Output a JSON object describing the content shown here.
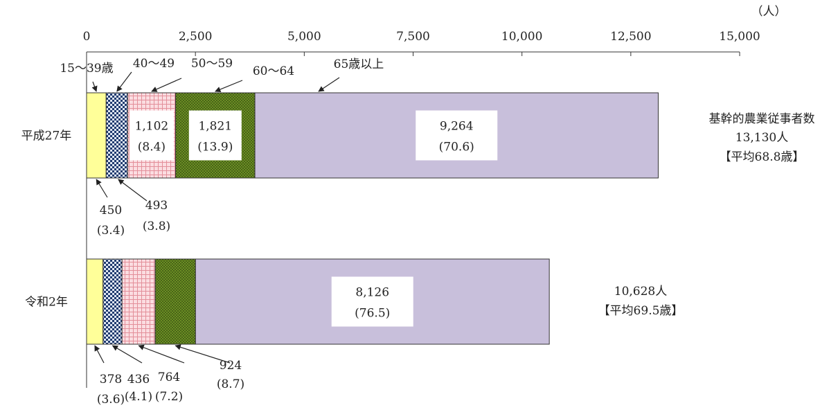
{
  "chart_data": {
    "type": "bar",
    "orientation": "horizontal",
    "stacked": true,
    "unit": "（人）",
    "xlim": [
      0,
      15000
    ],
    "ticks": [
      "0",
      "2,500",
      "5,000",
      "7,500",
      "10,000",
      "12,500",
      "15,000"
    ],
    "tick_values": [
      0,
      2500,
      5000,
      7500,
      10000,
      12500,
      15000
    ],
    "categories": [
      "平成27年",
      "令和2年"
    ],
    "series": [
      {
        "name": "15～39歳",
        "values": [
          450,
          378
        ],
        "share": [
          "(3.4)",
          "(3.6)"
        ],
        "value_labels": [
          "450",
          "378"
        ],
        "color": "#ffff99",
        "pattern": "solid"
      },
      {
        "name": "40～49",
        "values": [
          493,
          436
        ],
        "share": [
          "(3.8)",
          "(4.1)"
        ],
        "value_labels": [
          "493",
          "436"
        ],
        "color": "#1f3a6e",
        "pattern": "check"
      },
      {
        "name": "50～59",
        "values": [
          1102,
          764
        ],
        "share": [
          "(8.4)",
          "(7.2)"
        ],
        "value_labels": [
          "1,102",
          "764"
        ],
        "color": "#f4b8c0",
        "pattern": "grid"
      },
      {
        "name": "60～64",
        "values": [
          1821,
          924
        ],
        "share": [
          "(13.9)",
          "(8.7)"
        ],
        "value_labels": [
          "1,821",
          "924"
        ],
        "color": "#6b8e23",
        "pattern": "dots"
      },
      {
        "name": "65歳以上",
        "values": [
          9264,
          8126
        ],
        "share": [
          "(70.6)",
          "(76.5)"
        ],
        "value_labels": [
          "9,264",
          "8,126"
        ],
        "color": "#c8bfdb",
        "pattern": "solid"
      }
    ],
    "totals": [
      {
        "title": "基幹的農業従事者数",
        "total": "13,130人",
        "average": "【平均68.8歳】"
      },
      {
        "title": "",
        "total": "10,628人",
        "average": "【平均69.5歳】"
      }
    ],
    "grid": false,
    "legend": "none"
  }
}
